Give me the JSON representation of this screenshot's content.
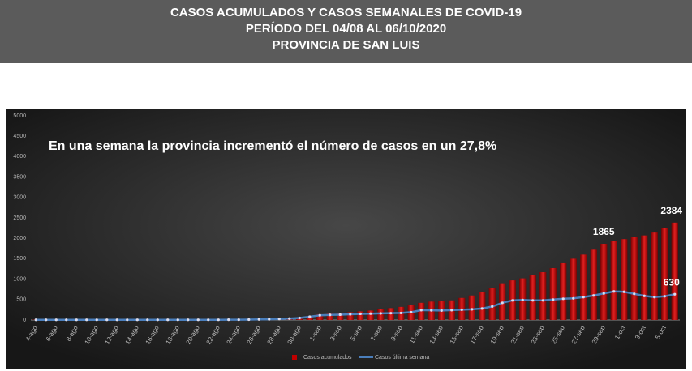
{
  "header": {
    "lines": [
      "CASOS ACUMULADOS  Y CASOS SEMANALES DE COVID-19",
      "PERÍODO DEL 04/08 AL 06/10/2020",
      "PROVINCIA DE SAN LUIS"
    ]
  },
  "chart_data": {
    "type": "bar-line",
    "annotation": "En una semana la provincia incrementó el número de casos en un 27,8%",
    "categories": [
      "4-ago",
      null,
      "6-ago",
      null,
      "8-ago",
      null,
      "10-ago",
      null,
      "12-ago",
      null,
      "14-ago",
      null,
      "16-ago",
      null,
      "18-ago",
      null,
      "20-ago",
      null,
      "22-ago",
      null,
      "24-ago",
      null,
      "26-ago",
      null,
      "28-ago",
      null,
      "30-ago",
      null,
      "1-sep",
      null,
      "3-sep",
      null,
      "5-sep",
      null,
      "7-sep",
      null,
      "9-sep",
      null,
      "11-sep",
      null,
      "13-sep",
      null,
      "15-sep",
      null,
      "17-sep",
      null,
      "19-sep",
      null,
      "21-sep",
      null,
      "23-sep",
      null,
      "25-sep",
      null,
      "27-sep",
      null,
      "29-sep",
      null,
      "1-oct",
      null,
      "3-oct",
      null,
      "5-oct",
      null
    ],
    "series": [
      {
        "name": "Casos acumulados",
        "type": "bar",
        "color": "#c00000",
        "values": [
          8,
          9,
          9,
          10,
          10,
          10,
          11,
          11,
          11,
          12,
          12,
          12,
          13,
          13,
          14,
          14,
          15,
          15,
          16,
          17,
          18,
          22,
          28,
          35,
          45,
          55,
          70,
          100,
          140,
          155,
          175,
          190,
          210,
          230,
          260,
          290,
          320,
          360,
          420,
          450,
          470,
          480,
          540,
          600,
          690,
          780,
          900,
          970,
          1020,
          1100,
          1170,
          1270,
          1390,
          1500,
          1600,
          1720,
          1865,
          1930,
          1980,
          2030,
          2070,
          2140,
          2250,
          2384
        ],
        "value_labels": [
          null,
          null,
          null,
          null,
          null,
          null,
          null,
          null,
          null,
          null,
          null,
          null,
          null,
          null,
          null,
          null,
          null,
          null,
          null,
          null,
          null,
          null,
          null,
          null,
          null,
          null,
          null,
          null,
          null,
          null,
          null,
          null,
          null,
          null,
          null,
          null,
          null,
          null,
          null,
          null,
          null,
          null,
          null,
          null,
          null,
          null,
          null,
          null,
          null,
          null,
          null,
          null,
          null,
          null,
          null,
          null,
          "1865",
          null,
          null,
          null,
          null,
          null,
          null,
          "2384"
        ]
      },
      {
        "name": "Casos última semana",
        "type": "line",
        "color": "#4a7ebb",
        "values": [
          5,
          5,
          5,
          5,
          5,
          5,
          5,
          5,
          5,
          5,
          5,
          5,
          5,
          5,
          5,
          5,
          5,
          5,
          6,
          7,
          8,
          10,
          14,
          18,
          25,
          35,
          50,
          80,
          115,
          125,
          130,
          140,
          150,
          155,
          160,
          165,
          170,
          190,
          240,
          235,
          230,
          240,
          250,
          260,
          280,
          330,
          420,
          480,
          490,
          480,
          480,
          500,
          520,
          530,
          560,
          600,
          650,
          700,
          690,
          640,
          590,
          560,
          580,
          630
        ],
        "value_labels": [
          null,
          null,
          null,
          null,
          null,
          null,
          null,
          null,
          null,
          null,
          null,
          null,
          null,
          null,
          null,
          null,
          null,
          null,
          null,
          null,
          null,
          null,
          null,
          null,
          null,
          null,
          null,
          null,
          null,
          null,
          null,
          null,
          null,
          null,
          null,
          null,
          null,
          null,
          null,
          null,
          null,
          null,
          null,
          null,
          null,
          null,
          null,
          null,
          null,
          null,
          null,
          null,
          null,
          null,
          null,
          null,
          null,
          null,
          null,
          null,
          null,
          null,
          null,
          "630"
        ]
      }
    ],
    "ylim": [
      0,
      5000
    ],
    "yticks": [
      0,
      500,
      1000,
      1500,
      2000,
      2500,
      3000,
      3500,
      4000,
      4500,
      5000
    ],
    "grid": false,
    "legend": "bottom"
  }
}
